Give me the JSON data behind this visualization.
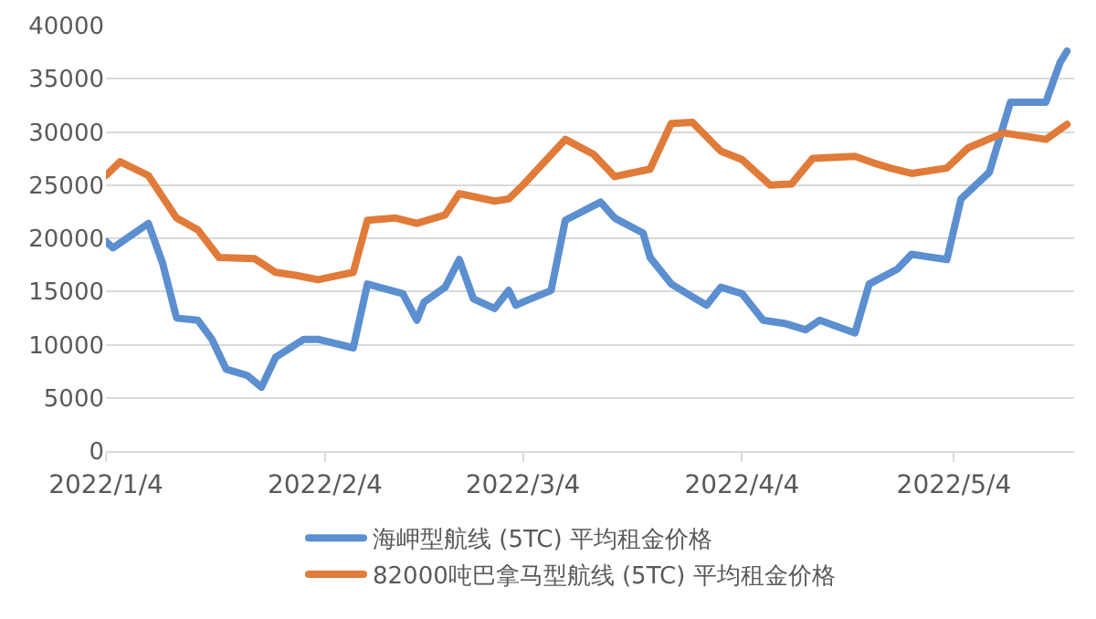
{
  "chart_data": {
    "type": "line",
    "xlim": [
      "2022-01-04",
      "2022-05-21"
    ],
    "xticks": [
      {
        "value": "2022-01-04",
        "label": "2022/1/4"
      },
      {
        "value": "2022-02-04",
        "label": "2022/2/4"
      },
      {
        "value": "2022-03-04",
        "label": "2022/3/4"
      },
      {
        "value": "2022-04-04",
        "label": "2022/4/4"
      },
      {
        "value": "2022-05-04",
        "label": "2022/5/4"
      }
    ],
    "ylim": [
      0,
      40000
    ],
    "yticks": [
      0,
      5000,
      10000,
      15000,
      20000,
      25000,
      30000,
      35000,
      40000
    ],
    "grid": "y",
    "legend": "bottom",
    "marker": "none",
    "line_style": "solid",
    "series": [
      {
        "name": "海岬型航线 (5TC) 平均租金价格",
        "color": "#5b8fd0",
        "x": [
          "2022-01-04",
          "2022-01-05",
          "2022-01-10",
          "2022-01-12",
          "2022-01-14",
          "2022-01-17",
          "2022-01-19",
          "2022-01-21",
          "2022-01-24",
          "2022-01-26",
          "2022-01-28",
          "2022-02-01",
          "2022-02-03",
          "2022-02-08",
          "2022-02-10",
          "2022-02-15",
          "2022-02-17",
          "2022-02-18",
          "2022-02-21",
          "2022-02-23",
          "2022-02-25",
          "2022-02-28",
          "2022-03-02",
          "2022-03-03",
          "2022-03-04",
          "2022-03-08",
          "2022-03-10",
          "2022-03-15",
          "2022-03-17",
          "2022-03-21",
          "2022-03-22",
          "2022-03-25",
          "2022-03-30",
          "2022-04-01",
          "2022-04-04",
          "2022-04-07",
          "2022-04-10",
          "2022-04-13",
          "2022-04-15",
          "2022-04-20",
          "2022-04-22",
          "2022-04-26",
          "2022-04-28",
          "2022-05-03",
          "2022-05-05",
          "2022-05-09",
          "2022-05-12",
          "2022-05-17",
          "2022-05-19",
          "2022-05-20"
        ],
        "values": [
          19700,
          19100,
          21400,
          17700,
          12500,
          12300,
          10500,
          7700,
          7100,
          6000,
          8800,
          10500,
          10500,
          9700,
          15700,
          14800,
          12300,
          14000,
          15400,
          18000,
          14300,
          13400,
          15100,
          13700,
          14000,
          15100,
          21700,
          23400,
          21900,
          20500,
          18200,
          15700,
          13700,
          15400,
          14800,
          12300,
          12000,
          11400,
          12300,
          11100,
          15700,
          17100,
          18500,
          18000,
          23700,
          26200,
          32800,
          32800,
          36500,
          37600
        ]
      },
      {
        "name": "82000吨巴拿马型航线 (5TC) 平均租金价格",
        "color": "#e07b39",
        "x": [
          "2022-01-04",
          "2022-01-06",
          "2022-01-10",
          "2022-01-14",
          "2022-01-17",
          "2022-01-20",
          "2022-01-25",
          "2022-01-28",
          "2022-01-31",
          "2022-02-03",
          "2022-02-08",
          "2022-02-10",
          "2022-02-14",
          "2022-02-17",
          "2022-02-21",
          "2022-02-23",
          "2022-02-28",
          "2022-03-02",
          "2022-03-04",
          "2022-03-10",
          "2022-03-14",
          "2022-03-17",
          "2022-03-22",
          "2022-03-25",
          "2022-03-28",
          "2022-04-01",
          "2022-04-04",
          "2022-04-08",
          "2022-04-11",
          "2022-04-14",
          "2022-04-20",
          "2022-04-23",
          "2022-04-25",
          "2022-04-28",
          "2022-05-03",
          "2022-05-06",
          "2022-05-11",
          "2022-05-17",
          "2022-05-20"
        ],
        "values": [
          25900,
          27200,
          25900,
          21900,
          20800,
          18200,
          18100,
          16800,
          16500,
          16100,
          16800,
          21700,
          21900,
          21400,
          22200,
          24200,
          23500,
          23700,
          25000,
          29300,
          27900,
          25800,
          26500,
          30800,
          30900,
          28200,
          27400,
          25000,
          25100,
          27500,
          27700,
          27000,
          26600,
          26100,
          26600,
          28500,
          29900,
          29300,
          30700
        ]
      }
    ]
  }
}
